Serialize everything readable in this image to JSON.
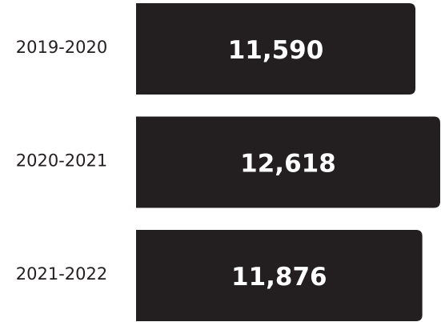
{
  "chart_data": {
    "type": "bar",
    "orientation": "horizontal",
    "categories": [
      "2019-2020",
      "2020-2021",
      "2021-2022"
    ],
    "values": [
      11590,
      12618,
      11876
    ],
    "value_labels": [
      "11,590",
      "12,618",
      "11,876"
    ],
    "color": "#231f20"
  }
}
